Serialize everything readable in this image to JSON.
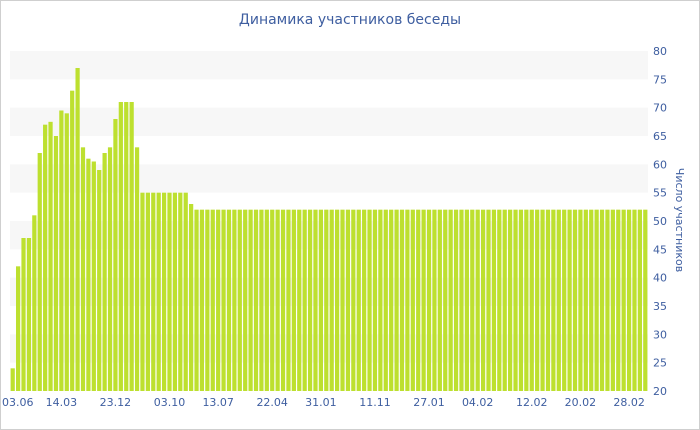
{
  "chart_data": {
    "type": "bar",
    "title": "Динамика участников беседы",
    "ylabel": "Число участников",
    "ylim": [
      20,
      80
    ],
    "ytick_step": 5,
    "grid": "alternating-bands",
    "bar_color": "#bde02f",
    "band_color": "#f7f7f7",
    "text_color": "#3e5ea0",
    "x_tick_labels": [
      {
        "index": 0,
        "label": "03.06"
      },
      {
        "index": 9,
        "label": "14.03"
      },
      {
        "index": 19,
        "label": "23.12"
      },
      {
        "index": 29,
        "label": "03.10"
      },
      {
        "index": 38,
        "label": "13.07"
      },
      {
        "index": 48,
        "label": "22.04"
      },
      {
        "index": 57,
        "label": "31.01"
      },
      {
        "index": 67,
        "label": "11.11"
      },
      {
        "index": 77,
        "label": "27.01"
      },
      {
        "index": 86,
        "label": "04.02"
      },
      {
        "index": 96,
        "label": "12.02"
      },
      {
        "index": 105,
        "label": "20.02"
      },
      {
        "index": 114,
        "label": "28.02"
      }
    ],
    "values": [
      24,
      42,
      47,
      47,
      51,
      62,
      67,
      67.5,
      65,
      69.5,
      69,
      73,
      77,
      63,
      61,
      60.5,
      59,
      62,
      63,
      68,
      71,
      71,
      71,
      63,
      55,
      55,
      55,
      55,
      55,
      55,
      55,
      55,
      55,
      53,
      52,
      52,
      52,
      52,
      52,
      52,
      52,
      52,
      52,
      52,
      52,
      52,
      52,
      52,
      52,
      52,
      52,
      52,
      52,
      52,
      52,
      52,
      52,
      52,
      52,
      52,
      52,
      52,
      52,
      52,
      52,
      52,
      52,
      52,
      52,
      52,
      52,
      52,
      52,
      52,
      52,
      52,
      52,
      52,
      52,
      52,
      52,
      52,
      52,
      52,
      52,
      52,
      52,
      52,
      52,
      52,
      52,
      52,
      52,
      52,
      52,
      52,
      52,
      52,
      52,
      52,
      52,
      52,
      52,
      52,
      52,
      52,
      52,
      52,
      52,
      52,
      52,
      52,
      52,
      52,
      52,
      52,
      52,
      52
    ]
  }
}
